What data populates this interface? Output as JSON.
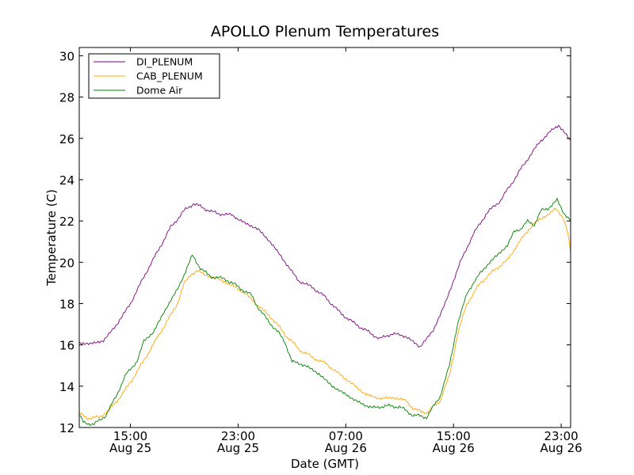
{
  "chart_data": {
    "type": "line",
    "title": "APOLLO Plenum Temperatures",
    "xlabel": "Date (GMT)",
    "ylabel": "Temperature (C)",
    "xlim": [
      11.2,
      47.7
    ],
    "ylim": [
      12,
      30.4
    ],
    "x_unit": "hours since Aug 25 00:00 GMT",
    "x_ticks": [
      {
        "x": 15,
        "time": "15:00",
        "date": "Aug 25"
      },
      {
        "x": 23,
        "time": "23:00",
        "date": "Aug 25"
      },
      {
        "x": 31,
        "time": "07:00",
        "date": "Aug 26"
      },
      {
        "x": 39,
        "time": "15:00",
        "date": "Aug 26"
      },
      {
        "x": 47,
        "time": "23:00",
        "date": "Aug 26"
      }
    ],
    "y_ticks": [
      "12",
      "14",
      "16",
      "18",
      "20",
      "22",
      "24",
      "26",
      "28",
      "30"
    ],
    "legend": {
      "position": "top-left",
      "entries": [
        "DI_PLENUM",
        "CAB_PLENUM",
        "Dome Air"
      ]
    },
    "series": [
      {
        "name": "DI_PLENUM",
        "color": "#800080",
        "points": [
          [
            11.2,
            16.1
          ],
          [
            12,
            16.05
          ],
          [
            13,
            16.2
          ],
          [
            14,
            17.0
          ],
          [
            15,
            18.0
          ],
          [
            16,
            19.3
          ],
          [
            17,
            20.5
          ],
          [
            18,
            21.7
          ],
          [
            19,
            22.5
          ],
          [
            19.7,
            22.85
          ],
          [
            20.5,
            22.6
          ],
          [
            21.5,
            22.35
          ],
          [
            22.5,
            22.3
          ],
          [
            23.5,
            21.9
          ],
          [
            24.5,
            21.6
          ],
          [
            25.5,
            20.9
          ],
          [
            26.5,
            20.0
          ],
          [
            27.5,
            19.1
          ],
          [
            28.5,
            18.8
          ],
          [
            29.5,
            18.3
          ],
          [
            30.5,
            17.6
          ],
          [
            31.5,
            17.1
          ],
          [
            32.5,
            16.7
          ],
          [
            33.5,
            16.3
          ],
          [
            34.5,
            16.55
          ],
          [
            35.5,
            16.4
          ],
          [
            36.5,
            15.9
          ],
          [
            37.5,
            16.7
          ],
          [
            38.5,
            18.2
          ],
          [
            39.5,
            20.0
          ],
          [
            40.5,
            21.4
          ],
          [
            41.5,
            22.4
          ],
          [
            42.5,
            23.0
          ],
          [
            43.5,
            24.0
          ],
          [
            44.5,
            25.0
          ],
          [
            45.5,
            25.9
          ],
          [
            46.5,
            26.5
          ],
          [
            46.8,
            26.65
          ],
          [
            47.2,
            26.3
          ],
          [
            47.7,
            25.9
          ]
        ]
      },
      {
        "name": "CAB_PLENUM",
        "color": "#FFA500",
        "points": [
          [
            11.2,
            12.7
          ],
          [
            11.8,
            12.45
          ],
          [
            12.7,
            12.5
          ],
          [
            13.5,
            12.9
          ],
          [
            14.5,
            13.7
          ],
          [
            15.5,
            14.7
          ],
          [
            16.5,
            15.8
          ],
          [
            17.5,
            16.9
          ],
          [
            18.5,
            18.0
          ],
          [
            19,
            19.0
          ],
          [
            19.5,
            19.4
          ],
          [
            20,
            19.6
          ],
          [
            20.5,
            19.4
          ],
          [
            21.5,
            19.2
          ],
          [
            22.5,
            18.9
          ],
          [
            23.5,
            18.5
          ],
          [
            24.5,
            17.9
          ],
          [
            25.5,
            17.3
          ],
          [
            26.5,
            16.5
          ],
          [
            27.5,
            15.8
          ],
          [
            28.5,
            15.4
          ],
          [
            29.5,
            15.1
          ],
          [
            30.5,
            14.6
          ],
          [
            31.5,
            14.1
          ],
          [
            32.5,
            13.6
          ],
          [
            33.5,
            13.4
          ],
          [
            34.5,
            13.45
          ],
          [
            35.5,
            13.3
          ],
          [
            36,
            12.9
          ],
          [
            37,
            12.7
          ],
          [
            38,
            13.3
          ],
          [
            38.7,
            14.5
          ],
          [
            39.3,
            16.5
          ],
          [
            40,
            18.0
          ],
          [
            41,
            19.0
          ],
          [
            42,
            19.6
          ],
          [
            43,
            20.1
          ],
          [
            44,
            21.1
          ],
          [
            45,
            21.9
          ],
          [
            46,
            22.3
          ],
          [
            46.6,
            22.6
          ],
          [
            47.2,
            22.1
          ],
          [
            47.5,
            21.4
          ],
          [
            47.7,
            20.5
          ]
        ]
      },
      {
        "name": "Dome Air",
        "color": "#008000",
        "points": [
          [
            11.2,
            12.6
          ],
          [
            11.5,
            12.25
          ],
          [
            12.3,
            12.15
          ],
          [
            13.2,
            12.6
          ],
          [
            14,
            13.6
          ],
          [
            14.7,
            14.6
          ],
          [
            15.5,
            15.2
          ],
          [
            16,
            16.2
          ],
          [
            16.7,
            16.6
          ],
          [
            17.5,
            17.6
          ],
          [
            18.5,
            18.7
          ],
          [
            19,
            19.4
          ],
          [
            19.6,
            20.35
          ],
          [
            20.2,
            19.7
          ],
          [
            21,
            19.3
          ],
          [
            22,
            19.2
          ],
          [
            22.8,
            18.9
          ],
          [
            23.5,
            18.6
          ],
          [
            24,
            18.4
          ],
          [
            24.5,
            17.8
          ],
          [
            25.3,
            17.1
          ],
          [
            26,
            16.6
          ],
          [
            26.5,
            16.1
          ],
          [
            27,
            15.2
          ],
          [
            28,
            15.0
          ],
          [
            29,
            14.6
          ],
          [
            30,
            14.0
          ],
          [
            31,
            13.6
          ],
          [
            32,
            13.2
          ],
          [
            33,
            12.95
          ],
          [
            34,
            13.05
          ],
          [
            35,
            13.0
          ],
          [
            36,
            12.6
          ],
          [
            37,
            12.5
          ],
          [
            38,
            13.5
          ],
          [
            38.7,
            15.0
          ],
          [
            39.3,
            17.0
          ],
          [
            40,
            18.5
          ],
          [
            41,
            19.5
          ],
          [
            42,
            20.2
          ],
          [
            42.5,
            20.5
          ],
          [
            43,
            20.8
          ],
          [
            43.5,
            21.5
          ],
          [
            44,
            21.6
          ],
          [
            44.5,
            22.0
          ],
          [
            45,
            21.8
          ],
          [
            45.5,
            22.5
          ],
          [
            46,
            22.6
          ],
          [
            46.7,
            23.0
          ],
          [
            47.2,
            22.4
          ],
          [
            47.7,
            22.0
          ]
        ]
      }
    ]
  }
}
